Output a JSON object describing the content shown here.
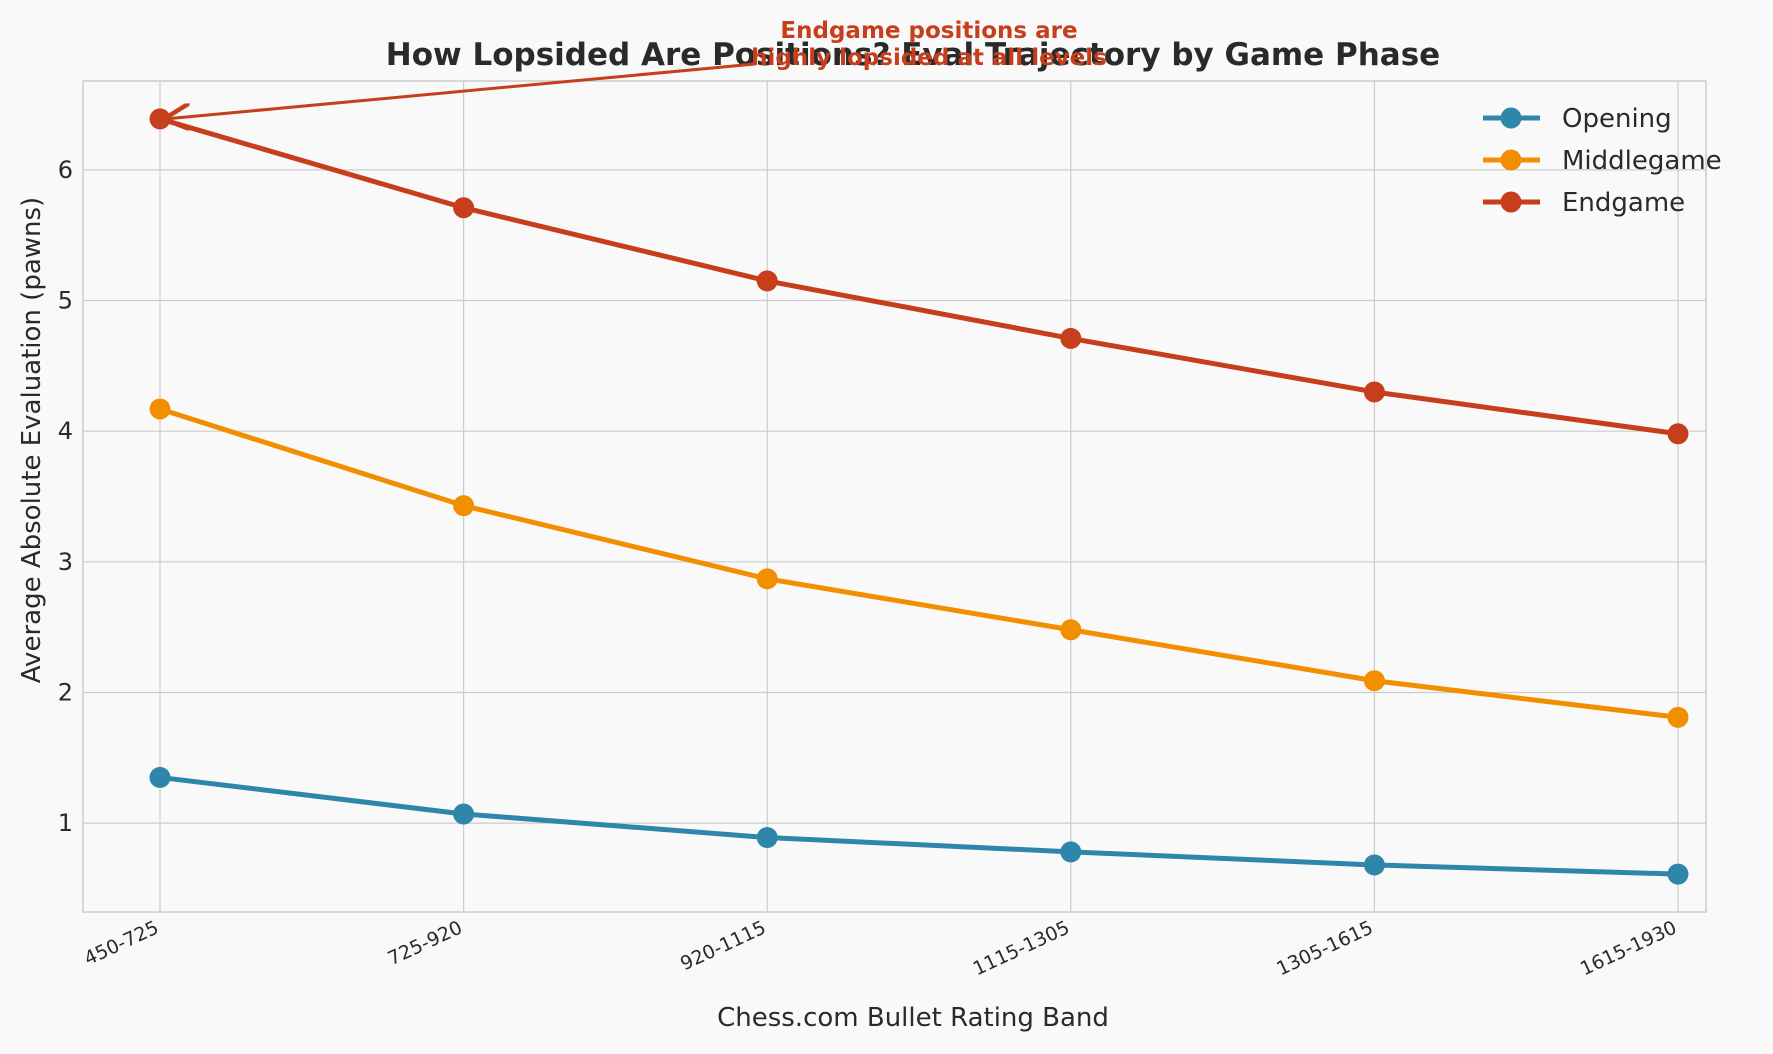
{
  "chart_data": {
    "type": "line",
    "title": "How Lopsided Are Positions? Eval Trajectory by Game Phase",
    "xlabel": "Chess.com Bullet Rating Band",
    "ylabel": "Average Absolute Evaluation (pawns)",
    "categories": [
      "450-725",
      "725-920",
      "920-1115",
      "1115-1305",
      "1305-1615",
      "1615-1930"
    ],
    "ylim": [
      0.32,
      6.68
    ],
    "yticks": [
      1,
      2,
      3,
      4,
      5,
      6
    ],
    "grid": true,
    "legend_position": "top-right",
    "series": [
      {
        "name": "Opening",
        "color": "#2e86ab",
        "values": [
          1.35,
          1.07,
          0.89,
          0.78,
          0.68,
          0.61
        ]
      },
      {
        "name": "Middlegame",
        "color": "#f18f01",
        "values": [
          4.17,
          3.43,
          2.87,
          2.48,
          2.09,
          1.81
        ]
      },
      {
        "name": "Endgame",
        "color": "#c73e1d",
        "values": [
          6.39,
          5.71,
          5.15,
          4.71,
          4.3,
          3.98
        ]
      }
    ],
    "annotation": {
      "lines": [
        "Endgame positions are",
        "highly lopsided at all levels"
      ],
      "series_index": 2,
      "category_index": 0,
      "color": "#c73e1d"
    }
  }
}
